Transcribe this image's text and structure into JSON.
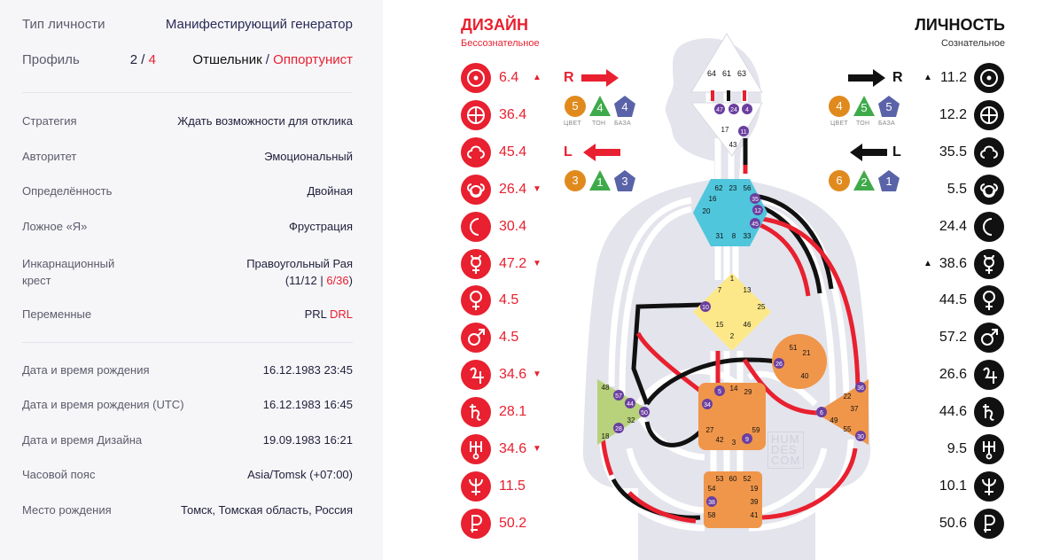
{
  "summary": {
    "type": {
      "label": "Тип личности",
      "value": "Манифестирующий генератор"
    },
    "profile": {
      "label": "Профиль",
      "line1": "2",
      "slash": " / ",
      "line2": "4",
      "name1": "Отшельник",
      "sep": " / ",
      "name2": "Оппортунист"
    }
  },
  "properties": [
    {
      "label": "Стратегия",
      "value": "Ждать возможности для отклика"
    },
    {
      "label": "Авторитет",
      "value": "Эмоциональный"
    },
    {
      "label": "Определённость",
      "value": "Двойная"
    },
    {
      "label": "Ложное «Я»",
      "value": "Фрустрация"
    }
  ],
  "cross": {
    "label_line1": "Инкарнационный",
    "label_line2": "крест",
    "value_line1": "Правоугольный Рая",
    "open": "(11/12 | ",
    "red_part": "6/36",
    "close": ")"
  },
  "variables": {
    "label": "Переменные",
    "part1": "PRL ",
    "part2": "DRL"
  },
  "birth": [
    {
      "label": "Дата и время рождения",
      "value": "16.12.1983 23:45"
    },
    {
      "label": "Дата и время рождения (UTC)",
      "value": "16.12.1983 16:45"
    },
    {
      "label": "Дата и время Дизайна",
      "value": "19.09.1983 16:21"
    },
    {
      "label": "Часовой пояс",
      "value": "Asia/Tomsk (+07:00)"
    },
    {
      "label": "Место рождения",
      "value": "Томск, Томская область, Россия"
    }
  ],
  "design": {
    "title": "ДИЗАЙН",
    "subtitle": "Бессознательное",
    "color": "#e8202f",
    "planets": [
      {
        "icon": "sun-icon",
        "value": "6.4",
        "arrow": "▲"
      },
      {
        "icon": "earth-icon",
        "value": "36.4",
        "arrow": ""
      },
      {
        "icon": "north-node-icon",
        "value": "45.4",
        "arrow": ""
      },
      {
        "icon": "south-node-icon",
        "value": "26.4",
        "arrow": "▼"
      },
      {
        "icon": "moon-icon",
        "value": "30.4",
        "arrow": ""
      },
      {
        "icon": "mercury-icon",
        "value": "47.2",
        "arrow": "▼"
      },
      {
        "icon": "venus-icon",
        "value": "4.5",
        "arrow": ""
      },
      {
        "icon": "mars-icon",
        "value": "4.5",
        "arrow": ""
      },
      {
        "icon": "jupiter-icon",
        "value": "34.6",
        "arrow": "▼"
      },
      {
        "icon": "saturn-icon",
        "value": "28.1",
        "arrow": ""
      },
      {
        "icon": "uranus-icon",
        "value": "34.6",
        "arrow": "▼"
      },
      {
        "icon": "neptune-icon",
        "value": "11.5",
        "arrow": ""
      },
      {
        "icon": "pluto-icon",
        "value": "50.2",
        "arrow": ""
      }
    ],
    "arrows": {
      "r": {
        "letter": "R",
        "badges": [
          "5",
          "4",
          "4"
        ],
        "captions": [
          "ЦВЕТ",
          "ТОН",
          "БАЗА"
        ]
      },
      "l": {
        "letter": "L",
        "badges": [
          "3",
          "1",
          "3"
        ]
      }
    }
  },
  "personality": {
    "title": "ЛИЧНОСТЬ",
    "subtitle": "Сознательное",
    "color": "#111111",
    "planets": [
      {
        "icon": "sun-icon",
        "value": "11.2",
        "arrow": "▲"
      },
      {
        "icon": "earth-icon",
        "value": "12.2",
        "arrow": ""
      },
      {
        "icon": "north-node-icon",
        "value": "35.5",
        "arrow": ""
      },
      {
        "icon": "south-node-icon",
        "value": "5.5",
        "arrow": ""
      },
      {
        "icon": "moon-icon",
        "value": "24.4",
        "arrow": ""
      },
      {
        "icon": "mercury-icon",
        "value": "38.6",
        "arrow": "▲"
      },
      {
        "icon": "venus-icon",
        "value": "44.5",
        "arrow": ""
      },
      {
        "icon": "mars-icon",
        "value": "57.2",
        "arrow": ""
      },
      {
        "icon": "jupiter-icon",
        "value": "26.6",
        "arrow": ""
      },
      {
        "icon": "saturn-icon",
        "value": "44.6",
        "arrow": ""
      },
      {
        "icon": "uranus-icon",
        "value": "9.5",
        "arrow": ""
      },
      {
        "icon": "neptune-icon",
        "value": "10.1",
        "arrow": ""
      },
      {
        "icon": "pluto-icon",
        "value": "50.6",
        "arrow": ""
      }
    ],
    "arrows": {
      "r": {
        "letter": "R",
        "badges": [
          "4",
          "5",
          "5"
        ],
        "captions": [
          "ЦВЕТ",
          "ТОН",
          "БАЗА"
        ]
      },
      "l": {
        "letter": "L",
        "badges": [
          "6",
          "2",
          "1"
        ]
      }
    }
  },
  "badge_colors": {
    "color": "#e08a1e",
    "tone": "#3faa4a",
    "base": "#5a63a8"
  },
  "centers": {
    "head": {
      "gates": [
        "64",
        "61",
        "63"
      ],
      "color": "#ffffff"
    },
    "ajna": {
      "gates": [
        "47",
        "24",
        "4",
        "17",
        "11",
        "43"
      ],
      "color": "#ffffff"
    },
    "throat": {
      "gates": [
        "62",
        "23",
        "56",
        "16",
        "35",
        "12",
        "20",
        "45",
        "31",
        "8",
        "33"
      ],
      "color": "#4fc6dc"
    },
    "g": {
      "gates": [
        "1",
        "7",
        "13",
        "10",
        "25",
        "15",
        "46",
        "2"
      ],
      "color": "#fde889"
    },
    "heart": {
      "gates": [
        "51",
        "21",
        "26",
        "40"
      ],
      "color": "#f0964a"
    },
    "spleen": {
      "gates": [
        "48",
        "57",
        "44",
        "32",
        "50",
        "28",
        "18"
      ],
      "color": "#b7d27a"
    },
    "sacral": {
      "gates": [
        "14",
        "29",
        "5",
        "34",
        "27",
        "59",
        "42",
        "3",
        "9"
      ],
      "color": "#f0964a"
    },
    "solar": {
      "gates": [
        "36",
        "22",
        "6",
        "37",
        "49",
        "55",
        "30"
      ],
      "color": "#f0964a"
    },
    "root": {
      "gates": [
        "53",
        "60",
        "52",
        "54",
        "19",
        "38",
        "39",
        "58",
        "41"
      ],
      "color": "#f0964a"
    }
  },
  "watermark": {
    "line1": "HUM",
    "line2": "DES",
    "line3": "COM"
  }
}
